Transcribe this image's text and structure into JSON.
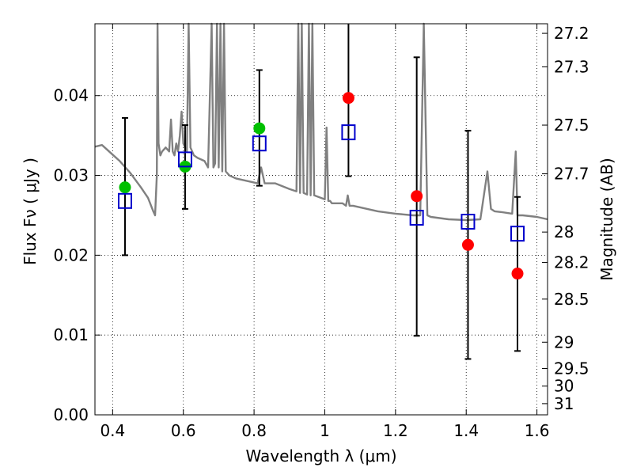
{
  "chart_data": {
    "type": "scatter",
    "title": "",
    "xlabel": "Wavelength  λ (μm)",
    "ylabel_left": "Flux  Fν  ( μJy )",
    "ylabel_right": "Magnitude (AB)",
    "xlim": [
      0.35,
      1.63
    ],
    "ylim": [
      0.0,
      0.049
    ],
    "grid": true,
    "x_ticks": [
      0.4,
      0.6,
      0.8,
      1.0,
      1.2,
      1.4,
      1.6
    ],
    "x_tick_labels": [
      "0.4",
      "0.6",
      "0.8",
      "1",
      "1.2",
      "1.4",
      "1.6"
    ],
    "y_ticks": [
      0.0,
      0.01,
      0.02,
      0.03,
      0.04
    ],
    "y_tick_labels": [
      "0.00",
      "0.01",
      "0.02",
      "0.03",
      "0.04"
    ],
    "right_ticks": [
      {
        "label": "27.2",
        "flux": 0.0478
      },
      {
        "label": "27.3",
        "flux": 0.0436
      },
      {
        "label": "27.5",
        "flux": 0.0363
      },
      {
        "label": "27.7",
        "flux": 0.0302
      },
      {
        "label": "28",
        "flux": 0.0229
      },
      {
        "label": "28.2",
        "flux": 0.0191
      },
      {
        "label": "28.5",
        "flux": 0.0145
      },
      {
        "label": "29",
        "flux": 0.0091
      },
      {
        "label": "29.5",
        "flux": 0.0058
      },
      {
        "label": "30",
        "flux": 0.0036
      },
      {
        "label": "31",
        "flux": 0.0014
      }
    ],
    "colors": {
      "green": "#00c000",
      "red": "#ff0000",
      "blue": "#0000cc",
      "spectrum": "#808080",
      "errorbar": "#000000"
    },
    "series": [
      {
        "marker": "filled-circle",
        "color": "#00c000",
        "x": [
          0.435,
          0.605,
          0.815
        ],
        "y": [
          0.0285,
          0.0311,
          0.0359
        ]
      },
      {
        "marker": "filled-circle",
        "color": "#ff0000",
        "x": [
          1.067,
          1.26,
          1.405,
          1.545
        ],
        "y": [
          0.0397,
          0.0274,
          0.0213,
          0.0177
        ]
      },
      {
        "marker": "open-square",
        "color": "#0000cc",
        "x": [
          0.435,
          0.605,
          0.815,
          1.067,
          1.26,
          1.405,
          1.545
        ],
        "y": [
          0.0268,
          0.032,
          0.034,
          0.0354,
          0.0247,
          0.0242,
          0.0227
        ]
      }
    ],
    "error_bars": [
      {
        "x": 0.435,
        "low": 0.02,
        "high": 0.0372
      },
      {
        "x": 0.605,
        "low": 0.0258,
        "high": 0.0363
      },
      {
        "x": 0.815,
        "low": 0.0287,
        "high": 0.0432
      },
      {
        "x": 1.067,
        "low": 0.0299,
        "high": 0.0494
      },
      {
        "x": 1.26,
        "low": 0.0099,
        "high": 0.0448
      },
      {
        "x": 1.405,
        "low": 0.007,
        "high": 0.0356
      },
      {
        "x": 1.545,
        "low": 0.008,
        "high": 0.0273
      }
    ],
    "spectrum": {
      "x": [
        0.35,
        0.37,
        0.39,
        0.4,
        0.42,
        0.45,
        0.48,
        0.5,
        0.515,
        0.52,
        0.525,
        0.527,
        0.53,
        0.535,
        0.54,
        0.55,
        0.56,
        0.565,
        0.57,
        0.575,
        0.58,
        0.585,
        0.59,
        0.595,
        0.6,
        0.61,
        0.615,
        0.62,
        0.625,
        0.63,
        0.64,
        0.66,
        0.67,
        0.68,
        0.685,
        0.69,
        0.695,
        0.7,
        0.705,
        0.71,
        0.715,
        0.72,
        0.73,
        0.75,
        0.78,
        0.81,
        0.82,
        0.83,
        0.86,
        0.9,
        0.92,
        0.925,
        0.93,
        0.935,
        0.94,
        0.95,
        0.955,
        0.96,
        0.965,
        0.97,
        1.0,
        1.005,
        1.01,
        1.015,
        1.02,
        1.05,
        1.06,
        1.065,
        1.07,
        1.08,
        1.1,
        1.15,
        1.2,
        1.25,
        1.27,
        1.28,
        1.29,
        1.3,
        1.35,
        1.4,
        1.44,
        1.46,
        1.47,
        1.48,
        1.5,
        1.53,
        1.54,
        1.545,
        1.55,
        1.56,
        1.6,
        1.63
      ],
      "y": [
        0.0336,
        0.0338,
        0.033,
        0.0326,
        0.0318,
        0.0303,
        0.0285,
        0.0272,
        0.0255,
        0.025,
        0.03,
        0.049,
        0.034,
        0.0325,
        0.033,
        0.0335,
        0.033,
        0.037,
        0.033,
        0.0325,
        0.034,
        0.033,
        0.035,
        0.038,
        0.034,
        0.033,
        0.049,
        0.0335,
        0.033,
        0.0325,
        0.0322,
        0.0318,
        0.031,
        0.049,
        0.031,
        0.0315,
        0.049,
        0.031,
        0.049,
        0.0305,
        0.049,
        0.0305,
        0.03,
        0.0296,
        0.0293,
        0.029,
        0.031,
        0.029,
        0.029,
        0.0283,
        0.028,
        0.049,
        0.0278,
        0.049,
        0.0278,
        0.0276,
        0.049,
        0.0275,
        0.049,
        0.0275,
        0.027,
        0.036,
        0.0268,
        0.0268,
        0.0265,
        0.0265,
        0.0262,
        0.0275,
        0.0262,
        0.0262,
        0.026,
        0.0255,
        0.0252,
        0.025,
        0.025,
        0.049,
        0.025,
        0.0248,
        0.0245,
        0.0244,
        0.0245,
        0.0305,
        0.0258,
        0.0255,
        0.0254,
        0.0252,
        0.033,
        0.025,
        0.025,
        0.025,
        0.0248,
        0.0245
      ]
    }
  }
}
